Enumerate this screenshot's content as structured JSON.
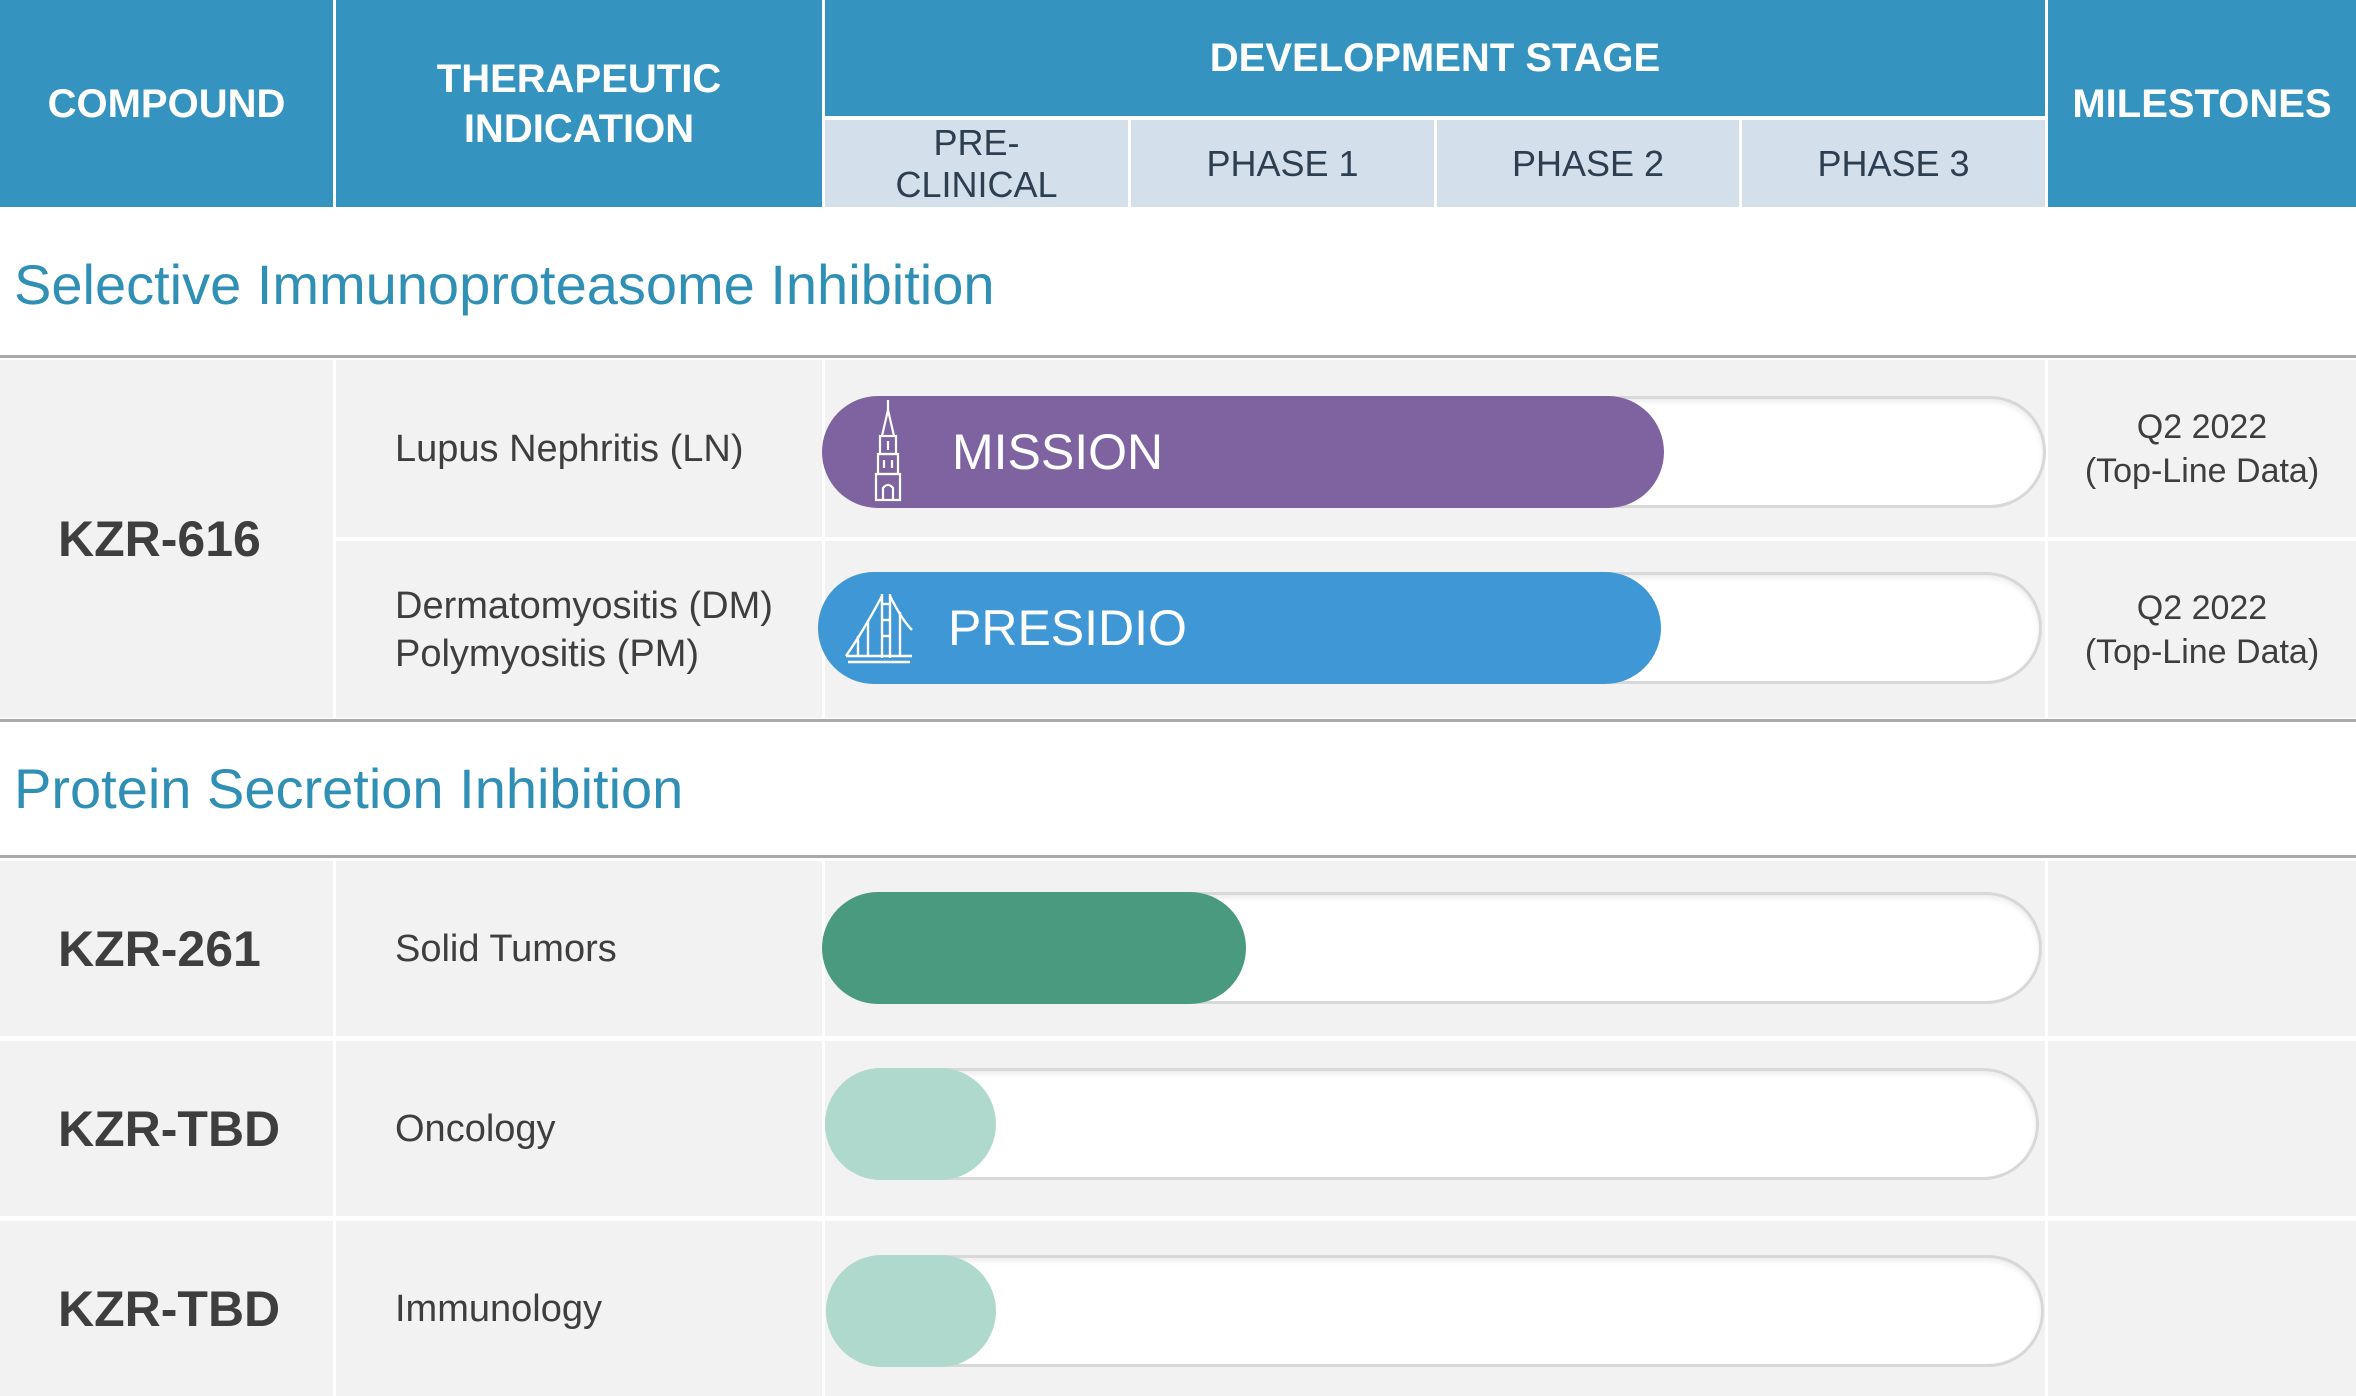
{
  "header": {
    "compound": "COMPOUND",
    "indication_line1": "THERAPEUTIC",
    "indication_line2": "INDICATION",
    "development_stage": "DEVELOPMENT STAGE",
    "milestones": "MILESTONES",
    "stages": [
      {
        "line1": "PRE-",
        "line2": "CLINICAL"
      },
      {
        "line1": "PHASE 1",
        "line2": ""
      },
      {
        "line1": "PHASE 2",
        "line2": ""
      },
      {
        "line1": "PHASE 3",
        "line2": ""
      }
    ]
  },
  "sections": [
    {
      "title": "Selective Immunoproteasome Inhibition"
    },
    {
      "title": "Protein Secretion Inhibition"
    }
  ],
  "compounds": [
    "KZR-616",
    "KZR-261",
    "KZR-TBD",
    "KZR-TBD"
  ],
  "rows": [
    {
      "indication_line1": "Lupus Nephritis (LN)",
      "indication_line2": "",
      "trial": "MISSION",
      "milestone_line1": "Q2 2022",
      "milestone_line2": "(Top-Line Data)"
    },
    {
      "indication_line1": "Dermatomyositis (DM)",
      "indication_line2": "Polymyositis (PM)",
      "trial": "PRESIDIO",
      "milestone_line1": "Q2 2022",
      "milestone_line2": "(Top-Line Data)"
    },
    {
      "indication_line1": "Solid Tumors",
      "indication_line2": "",
      "trial": "",
      "milestone_line1": "",
      "milestone_line2": ""
    },
    {
      "indication_line1": "Oncology",
      "indication_line2": "",
      "trial": "",
      "milestone_line1": "",
      "milestone_line2": ""
    },
    {
      "indication_line1": "Immunology",
      "indication_line2": "",
      "trial": "",
      "milestone_line1": "",
      "milestone_line2": ""
    }
  ],
  "chart_data": {
    "type": "bar",
    "orientation": "horizontal",
    "stage_axis": [
      "PRE-CLINICAL",
      "PHASE 1",
      "PHASE 2",
      "PHASE 3"
    ],
    "xlim": [
      0,
      4
    ],
    "series": [
      {
        "compound": "KZR-616",
        "indication": "Lupus Nephritis (LN)",
        "label": "MISSION",
        "progress": 2.75,
        "color": "#7e63a0",
        "icon": "chapel-icon"
      },
      {
        "compound": "KZR-616",
        "indication": "Dermatomyositis (DM) / Polymyositis (PM)",
        "label": "PRESIDIO",
        "progress": 2.74,
        "color": "#3f98d5",
        "icon": "bridge-icon"
      },
      {
        "compound": "KZR-261",
        "indication": "Solid Tumors",
        "label": "",
        "progress": 1.38,
        "color": "#4a9a80",
        "icon": ""
      },
      {
        "compound": "KZR-TBD",
        "indication": "Oncology",
        "label": "",
        "progress": 0.56,
        "color": "#afd9cc",
        "icon": ""
      },
      {
        "compound": "KZR-TBD",
        "indication": "Immunology",
        "label": "",
        "progress": 0.56,
        "color": "#afd9cc",
        "icon": ""
      }
    ]
  }
}
